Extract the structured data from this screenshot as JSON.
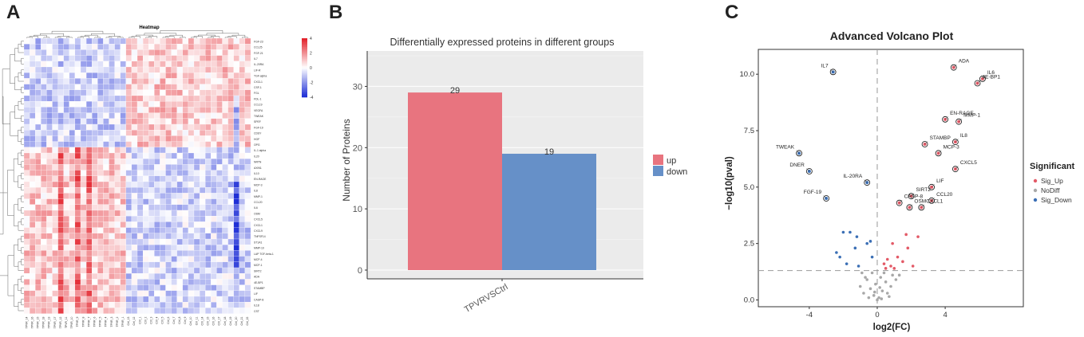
{
  "panels": {
    "a": "A",
    "b": "B",
    "c": "C"
  },
  "colors": {
    "heat_low": "#1f2fd6",
    "heat_mid": "#ffffff",
    "heat_high": "#e3232c",
    "bar_up": "#e8747f",
    "bar_down": "#6690c8",
    "sig_up": "#e35a67",
    "nodiff": "#a8a8a8",
    "sig_down": "#3b6fb5"
  },
  "chart_data": [
    {
      "type": "heatmap",
      "title": "Heatmap",
      "rows": [
        "FGF-23",
        "CCL25",
        "FGF-21",
        "IL7",
        "IL-20RA",
        "LIF-R",
        "TGF-alpha",
        "CXCL1",
        "CSF-1",
        "FGL",
        "FDL-1",
        "CCL19",
        "VEGFA",
        "TWEAK",
        "SPEF",
        "FGF-19",
        "CDSY",
        "HGF",
        "OPG",
        "IL-1 alpha",
        "IL20",
        "NRTN",
        "AXIN1",
        "IL10",
        "EN-RAGE",
        "MCP-3",
        "IL8",
        "MMP-1",
        "CCL20",
        "IL6",
        "OSM",
        "CXCL5",
        "CXCL1",
        "CXCL9",
        "TNFSF14",
        "ST1A1",
        "MMP-10",
        "LAP TGF-beta-1",
        "MCP-4",
        "MCP-1",
        "SIRT2",
        "ADA",
        "4E-BP1",
        "STAMBP",
        "LIF",
        "CASP-8",
        "IL18",
        "CST"
      ],
      "columns": [
        "TPVR_14",
        "TPVR_16",
        "TPVR_15",
        "TPVR_18",
        "TPVR_13",
        "TPVR_17",
        "TPVR_12",
        "TPVR_11",
        "TPVR_10",
        "TPVR_9",
        "TPVR_8",
        "TPVR_7",
        "TPVR_6",
        "TPVR_5",
        "TPVR_4",
        "TPVR_3",
        "TPVR_2",
        "TPVR_1",
        "Ctrl_13",
        "Ctrl_12",
        "Ctrl_1",
        "Ctrl_2",
        "Ctrl_3",
        "Ctrl_4",
        "Ctrl_5",
        "Ctrl_6",
        "Ctrl_7",
        "Ctrl_8",
        "Ctrl_9",
        "Ctrl_10",
        "Ctrl_11",
        "Ctrl_14",
        "Ctrl_15",
        "Ctrl_16",
        "Ctrl_17",
        "Ctrl_18",
        "Ctrl_19",
        "Ctrl_20",
        "Ctrl_21",
        "Ctrl_22"
      ],
      "scale": {
        "min": -4,
        "max": 4,
        "ticks": [
          4,
          2,
          0,
          -2,
          -4
        ]
      }
    },
    {
      "type": "bar",
      "title": "Differentially expressed proteins in different groups",
      "categories": [
        "TPVRVSCtrl"
      ],
      "series": [
        {
          "name": "up",
          "values": [
            29
          ]
        },
        {
          "name": "down",
          "values": [
            19
          ]
        }
      ],
      "ylabel": "Number of Proteins",
      "ylim": [
        0,
        35
      ],
      "yticks": [
        0,
        10,
        20,
        30
      ],
      "grid": true,
      "legend": "right"
    },
    {
      "type": "scatter",
      "title": "Advanced Volcano Plot",
      "xlabel": "log2(FC)",
      "ylabel": "−log10(pval)",
      "xlim": [
        -7,
        8.6
      ],
      "ylim": [
        -0.3,
        11.1
      ],
      "xticks": [
        -4,
        0,
        4
      ],
      "yticks": [
        0.0,
        2.5,
        5.0,
        7.5,
        10.0
      ],
      "ytick_labels": [
        "0.0",
        "2.5",
        "5.0",
        "7.5",
        "10.0"
      ],
      "hline": 1.3,
      "vline": 0,
      "legend_title": "Significant",
      "legend": [
        "Sig_Up",
        "NoDiff",
        "Sig_Down"
      ],
      "labeled_points": [
        {
          "label": "ADA",
          "x": 4.5,
          "y": 10.3,
          "group": "Sig_Up"
        },
        {
          "label": "IL6",
          "x": 6.2,
          "y": 9.8,
          "group": "Sig_Up"
        },
        {
          "label": "4E-BP1",
          "x": 5.9,
          "y": 9.6,
          "group": "Sig_Up"
        },
        {
          "label": "EN-RAGE",
          "x": 4.0,
          "y": 8.0,
          "group": "Sig_Up"
        },
        {
          "label": "MMP-1",
          "x": 4.8,
          "y": 7.9,
          "group": "Sig_Up"
        },
        {
          "label": "IL8",
          "x": 4.6,
          "y": 7.0,
          "group": "Sig_Up"
        },
        {
          "label": "STAMBP",
          "x": 2.8,
          "y": 6.9,
          "group": "Sig_Up"
        },
        {
          "label": "MCP-3",
          "x": 3.6,
          "y": 6.5,
          "group": "Sig_Up"
        },
        {
          "label": "CXCL5",
          "x": 4.6,
          "y": 5.8,
          "group": "Sig_Up"
        },
        {
          "label": "LIF",
          "x": 3.2,
          "y": 5.0,
          "group": "Sig_Up"
        },
        {
          "label": "SIRT2",
          "x": 2.0,
          "y": 4.6,
          "group": "Sig_Up"
        },
        {
          "label": "CCL20",
          "x": 3.2,
          "y": 4.4,
          "group": "Sig_Up"
        },
        {
          "label": "CASP-8",
          "x": 1.3,
          "y": 4.3,
          "group": "Sig_Up"
        },
        {
          "label": "OSM",
          "x": 1.9,
          "y": 4.1,
          "group": "Sig_Up"
        },
        {
          "label": "CXCL1",
          "x": 2.6,
          "y": 4.1,
          "group": "Sig_Up"
        },
        {
          "label": "IL7",
          "x": -2.6,
          "y": 10.1,
          "group": "Sig_Down"
        },
        {
          "label": "TWEAK",
          "x": -4.6,
          "y": 6.5,
          "group": "Sig_Down"
        },
        {
          "label": "DNER",
          "x": -4.0,
          "y": 5.7,
          "group": "Sig_Down"
        },
        {
          "label": "IL-20RA",
          "x": -0.6,
          "y": 5.2,
          "group": "Sig_Down"
        },
        {
          "label": "FGF-19",
          "x": -3.0,
          "y": 4.5,
          "group": "Sig_Down"
        }
      ],
      "other_points": {
        "Sig_Up": [
          [
            0.4,
            1.6
          ],
          [
            0.6,
            1.8
          ],
          [
            0.8,
            1.5
          ],
          [
            1.0,
            1.4
          ],
          [
            1.2,
            1.9
          ],
          [
            1.5,
            1.7
          ],
          [
            1.8,
            2.3
          ],
          [
            2.1,
            1.5
          ],
          [
            2.4,
            2.8
          ],
          [
            0.9,
            2.5
          ],
          [
            1.7,
            2.9
          ],
          [
            0.5,
            1.4
          ]
        ],
        "Sig_Down": [
          [
            -1.6,
            3.0
          ],
          [
            -2.0,
            3.0
          ],
          [
            -2.4,
            2.1
          ],
          [
            -1.3,
            2.3
          ],
          [
            -0.6,
            2.5
          ],
          [
            -0.3,
            1.9
          ],
          [
            -1.1,
            1.5
          ],
          [
            -1.8,
            1.6
          ],
          [
            -0.4,
            2.6
          ],
          [
            -1.2,
            2.8
          ],
          [
            -2.2,
            1.9
          ]
        ],
        "NoDiff": [
          [
            0.1,
            0.1
          ],
          [
            -0.2,
            0.2
          ],
          [
            0.3,
            0.4
          ],
          [
            -0.4,
            0.5
          ],
          [
            0.5,
            0.8
          ],
          [
            -0.6,
            0.9
          ],
          [
            0.2,
            1.0
          ],
          [
            -0.1,
            0.7
          ],
          [
            0.6,
            0.3
          ],
          [
            -0.3,
            1.2
          ],
          [
            0.8,
            0.6
          ],
          [
            -0.8,
            0.3
          ],
          [
            0.0,
            0.0
          ],
          [
            0.4,
            1.2
          ],
          [
            -0.5,
            0.1
          ],
          [
            0.9,
            1.1
          ],
          [
            -1.0,
            0.6
          ],
          [
            0.15,
            0.55
          ],
          [
            -0.7,
            1.0
          ],
          [
            1.1,
            0.9
          ],
          [
            0.25,
            0.05
          ],
          [
            -0.15,
            0.35
          ],
          [
            0.7,
            0.15
          ],
          [
            1.3,
            1.1
          ],
          [
            -0.9,
            1.2
          ]
        ]
      }
    }
  ]
}
